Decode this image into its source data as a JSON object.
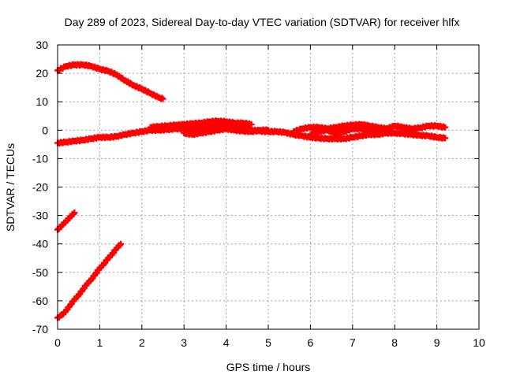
{
  "chart_data": {
    "type": "scatter",
    "title": "Day 289 of 2023, Sidereal Day-to-day VTEC variation (SDTVAR) for receiver hlfx",
    "xlabel": "GPS time / hours",
    "ylabel": "SDTVAR / TECUs",
    "xlim": [
      0,
      10
    ],
    "ylim": [
      -70,
      30
    ],
    "x_ticks": [
      "0",
      "1",
      "2",
      "3",
      "4",
      "5",
      "6",
      "7",
      "8",
      "9",
      "10"
    ],
    "y_ticks": [
      "-70",
      "-60",
      "-50",
      "-40",
      "-30",
      "-20",
      "-10",
      "0",
      "10",
      "20",
      "30"
    ],
    "grid": true,
    "legend": false,
    "marker_color": "#ff0000",
    "series": [
      {
        "x": [
          0.0,
          0.2,
          0.4,
          0.6,
          0.8,
          1.0,
          1.2,
          1.4,
          1.6,
          1.8,
          2.0,
          2.2,
          2.4,
          2.5
        ],
        "y": [
          21.0,
          22.5,
          23.0,
          23.0,
          22.5,
          21.5,
          20.8,
          19.5,
          17.5,
          15.8,
          14.5,
          13.0,
          11.5,
          11.0
        ]
      },
      {
        "x": [
          0.0,
          0.1,
          0.2,
          0.3,
          0.4
        ],
        "y": [
          -35.0,
          -33.5,
          -32.0,
          -30.5,
          -29.0
        ]
      },
      {
        "x": [
          0.0,
          0.1,
          0.2,
          0.3,
          0.4,
          0.5,
          0.6,
          0.7,
          0.8,
          0.9,
          1.0,
          1.1,
          1.2,
          1.3,
          1.4,
          1.5
        ],
        "y": [
          -66.0,
          -65.0,
          -63.5,
          -61.5,
          -59.5,
          -58.0,
          -56.0,
          -54.0,
          -52.5,
          -50.5,
          -48.5,
          -47.0,
          -45.0,
          -43.5,
          -41.5,
          -40.0
        ]
      },
      {
        "x": [
          0.0,
          0.2,
          0.4,
          0.6,
          0.8,
          1.0,
          1.2,
          1.4,
          1.6,
          1.8,
          2.0,
          2.2,
          2.4,
          2.6,
          2.8,
          3.0,
          3.2,
          3.4,
          3.6,
          3.8,
          4.0,
          4.2,
          4.4,
          4.6,
          4.8,
          5.0,
          5.2,
          5.4,
          5.6,
          5.8,
          6.0,
          6.2,
          6.4,
          6.6,
          6.8,
          7.0,
          7.2,
          7.4,
          7.6,
          7.8,
          8.0,
          8.2,
          8.4,
          8.6,
          8.8,
          9.0,
          9.2
        ],
        "y": [
          -4.5,
          -4.2,
          -3.8,
          -3.5,
          -3.0,
          -2.5,
          -2.5,
          -2.2,
          -1.5,
          -1.0,
          -0.5,
          0.0,
          0.0,
          0.2,
          0.5,
          0.5,
          0.5,
          0.8,
          1.0,
          1.2,
          1.0,
          0.8,
          0.5,
          0.0,
          -0.3,
          -0.5,
          -0.5,
          -0.8,
          -1.5,
          -2.0,
          -2.5,
          -2.8,
          -3.0,
          -3.0,
          -3.0,
          -2.5,
          -2.0,
          -1.5,
          -1.5,
          -1.0,
          -1.0,
          -1.2,
          -1.5,
          -1.8,
          -2.0,
          -2.5,
          -2.8
        ]
      },
      {
        "x": [
          2.2,
          2.4,
          2.6,
          2.8,
          3.0,
          3.2,
          3.4,
          3.6,
          3.8,
          4.0,
          4.2,
          4.4,
          4.6
        ],
        "y": [
          1.0,
          1.3,
          1.5,
          1.8,
          2.0,
          2.3,
          2.5,
          3.0,
          3.2,
          3.0,
          2.5,
          2.5,
          2.0
        ]
      },
      {
        "x": [
          3.0,
          3.2,
          3.4,
          3.6,
          3.8,
          4.0,
          4.2,
          4.4,
          4.6,
          4.8,
          5.0
        ],
        "y": [
          -1.0,
          -1.5,
          -1.0,
          -0.5,
          0.0,
          0.5,
          0.0,
          -0.3,
          -0.5,
          0.0,
          0.0
        ]
      },
      {
        "x": [
          5.6,
          5.8,
          6.0,
          6.2,
          6.4,
          6.6,
          6.8,
          7.0,
          7.2,
          7.4,
          7.6,
          7.8,
          8.0,
          8.2,
          8.4,
          8.6,
          8.8,
          9.0,
          9.2
        ],
        "y": [
          -0.5,
          0.5,
          1.0,
          1.0,
          0.5,
          1.0,
          1.5,
          1.8,
          2.0,
          1.5,
          1.0,
          0.5,
          1.5,
          1.0,
          0.5,
          0.8,
          1.5,
          1.5,
          1.0
        ]
      },
      {
        "x": [
          6.0,
          6.2,
          6.4,
          6.6,
          6.8,
          7.0,
          7.2,
          7.4,
          7.6,
          7.8
        ],
        "y": [
          -1.5,
          -0.5,
          0.0,
          -1.0,
          -0.5,
          0.5,
          0.5,
          0.0,
          -0.5,
          0.0
        ]
      }
    ]
  }
}
